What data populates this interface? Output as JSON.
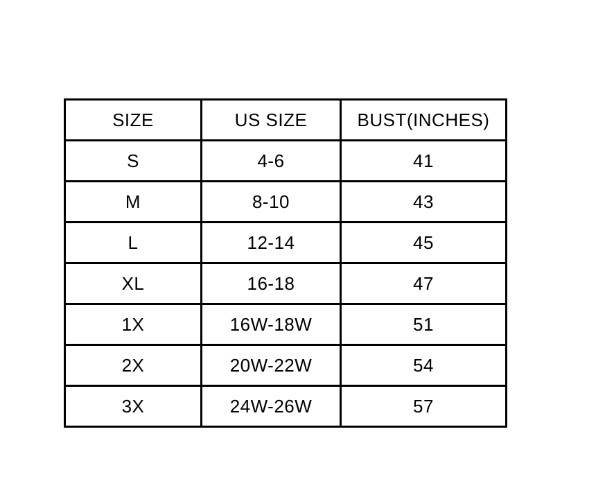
{
  "chart_data": {
    "type": "table",
    "title": "",
    "columns": [
      "SIZE",
      "US SIZE",
      "BUST(INCHES)"
    ],
    "rows": [
      [
        "S",
        "4-6",
        "41"
      ],
      [
        "M",
        "8-10",
        "43"
      ],
      [
        "L",
        "12-14",
        "45"
      ],
      [
        "XL",
        "16-18",
        "47"
      ],
      [
        "1X",
        "16W-18W",
        "51"
      ],
      [
        "2X",
        "20W-22W",
        "54"
      ],
      [
        "3X",
        "24W-26W",
        "57"
      ]
    ]
  },
  "colors": {
    "border": "#000000",
    "text": "#000000",
    "background": "#ffffff"
  }
}
